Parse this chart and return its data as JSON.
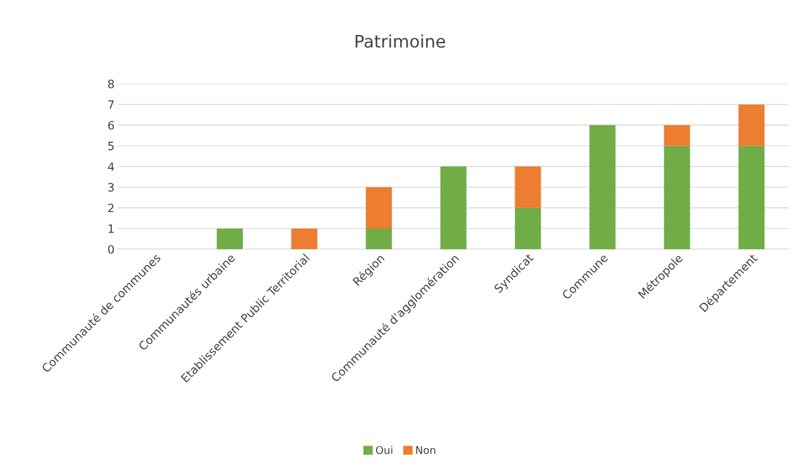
{
  "chart_data": {
    "type": "bar",
    "title": "Patrimoine",
    "stacked": true,
    "categories": [
      "Communauté de communes",
      "Communautés urbaine",
      "Etablissement Public Territorial",
      "Région",
      "Communauté d'agglomération",
      "Syndicat",
      "Commune",
      "Métropole",
      "Département"
    ],
    "series": [
      {
        "name": "Oui",
        "color": "#70ad47",
        "values": [
          0,
          1,
          0,
          1,
          4,
          2,
          6,
          5,
          5
        ]
      },
      {
        "name": "Non",
        "color": "#ed7d31",
        "values": [
          0,
          0,
          1,
          2,
          0,
          2,
          0,
          1,
          2
        ]
      }
    ],
    "ylim": [
      0,
      8
    ],
    "yticks": [
      0,
      1,
      2,
      3,
      4,
      5,
      6,
      7,
      8
    ],
    "grid": "y",
    "legend": "bottom"
  }
}
